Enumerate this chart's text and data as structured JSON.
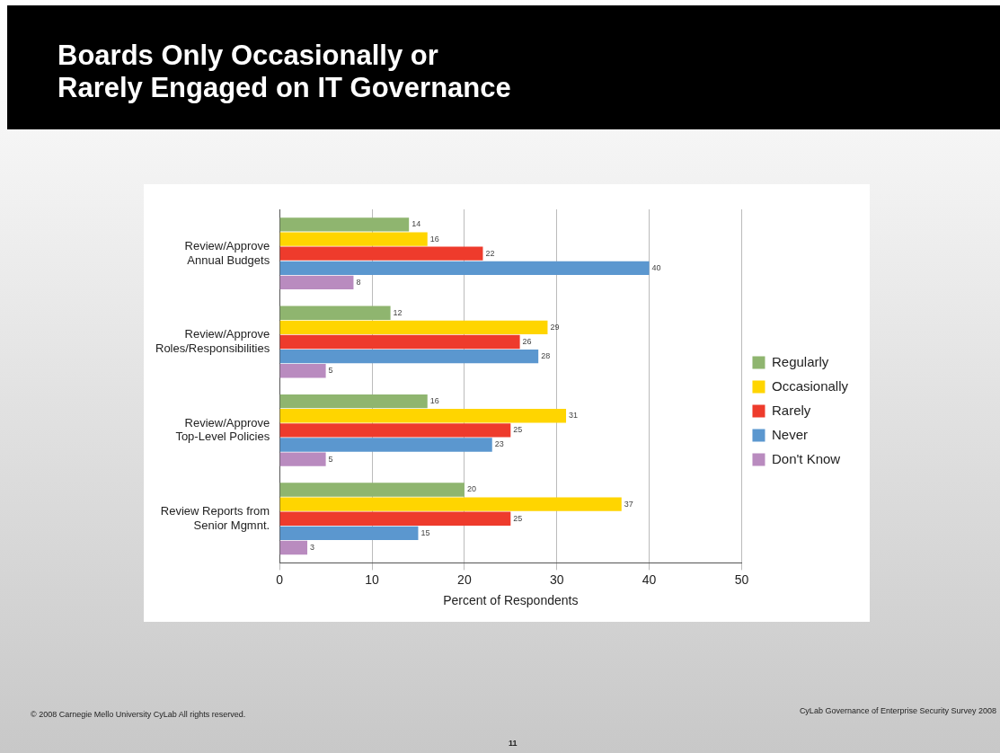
{
  "chart_data": {
    "type": "bar",
    "orientation": "horizontal",
    "title": "Boards Only Occasionally or\nRarely Engaged on IT Governance",
    "categories": [
      "Review/Approve\nAnnual Budgets",
      "Review/Approve\nRoles/Responsibilities",
      "Review/Approve\nTop-Level Policies",
      "Review Reports from\nSenior Mgmnt."
    ],
    "series": [
      {
        "name": "Regularly",
        "color": "#8fb56f",
        "values": [
          14,
          12,
          16,
          20
        ]
      },
      {
        "name": "Occasionally",
        "color": "#ffd500",
        "values": [
          16,
          29,
          31,
          37
        ]
      },
      {
        "name": "Rarely",
        "color": "#ee3b2c",
        "values": [
          22,
          26,
          25,
          25
        ]
      },
      {
        "name": "Never",
        "color": "#5b97cf",
        "values": [
          40,
          28,
          23,
          15
        ]
      },
      {
        "name": "Don't Know",
        "color": "#b98bbf",
        "values": [
          8,
          5,
          5,
          3
        ]
      }
    ],
    "xlabel": "Percent of Respondents",
    "xlim": [
      0,
      50
    ],
    "xticks": [
      0,
      10,
      20,
      30,
      40,
      50
    ],
    "grid": "x",
    "legend": "right",
    "data_labels": true,
    "annotations": [
      "© 2008 Carnegie Mello University  CyLab  All rights reserved.",
      "CyLab Governance of Enterprise Security Survey 2008",
      "11"
    ]
  }
}
